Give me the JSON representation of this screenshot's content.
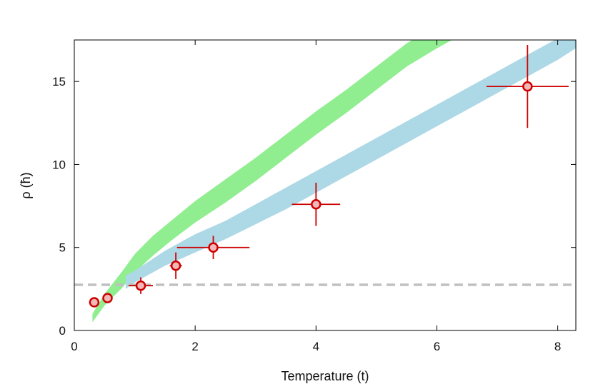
{
  "chart_data": {
    "type": "scatter",
    "title": "",
    "xlabel": "Temperature (t)",
    "ylabel": "ρ (ħ)",
    "xlim": [
      0,
      8.3
    ],
    "ylim": [
      0,
      17.5
    ],
    "xticks": [
      0,
      2,
      4,
      6,
      8
    ],
    "yticks": [
      0,
      5,
      10,
      15
    ],
    "grid": false,
    "reference_line": {
      "y": 2.75,
      "color": "#c0c0c0",
      "style": "dashed"
    },
    "bands": [
      {
        "color": "#90ee90",
        "x": [
          0.3,
          0.5,
          0.8,
          1.0,
          1.3,
          1.6,
          2.0,
          2.5,
          3.0,
          3.5,
          4.0,
          4.5,
          5.0,
          5.5,
          6.0,
          6.5
        ],
        "lower": [
          0.5,
          1.5,
          2.6,
          3.5,
          4.5,
          5.4,
          6.5,
          7.7,
          9.0,
          10.4,
          11.8,
          13.1,
          14.5,
          15.9,
          17.0,
          18.0
        ],
        "upper": [
          1.0,
          2.2,
          3.6,
          4.6,
          5.7,
          6.6,
          7.8,
          9.1,
          10.4,
          11.8,
          13.2,
          14.5,
          15.9,
          17.3,
          18.4,
          19.4
        ]
      },
      {
        "color": "#add8e6",
        "x": [
          0.85,
          1.0,
          1.5,
          2.0,
          2.5,
          3.0,
          3.5,
          4.0,
          4.5,
          5.0,
          5.5,
          6.0,
          6.5,
          7.0,
          7.5,
          8.0,
          8.3
        ],
        "lower": [
          2.5,
          2.9,
          3.9,
          4.7,
          5.5,
          6.4,
          7.3,
          8.3,
          9.3,
          10.3,
          11.3,
          12.3,
          13.3,
          14.3,
          15.3,
          16.3,
          17.0
        ],
        "upper": [
          3.3,
          3.6,
          4.8,
          5.8,
          6.6,
          7.6,
          8.6,
          9.6,
          10.6,
          11.6,
          12.6,
          13.6,
          14.6,
          15.6,
          16.6,
          17.6,
          18.2
        ]
      }
    ],
    "points": [
      {
        "x": 0.33,
        "y": 1.7,
        "xerr": 0.0,
        "yerr": 0.0
      },
      {
        "x": 0.55,
        "y": 1.95,
        "xerr": 0.0,
        "yerr": 0.0
      },
      {
        "x": 1.1,
        "y": 2.7,
        "xerr": 0.2,
        "yerr": 0.5
      },
      {
        "x": 1.68,
        "y": 3.9,
        "xerr": 0.1,
        "yerr": 0.8
      },
      {
        "x": 2.3,
        "y": 5.0,
        "xerr": 0.6,
        "yerr": 0.7
      },
      {
        "x": 4.0,
        "y": 7.6,
        "xerr": 0.4,
        "yerr": 1.3
      },
      {
        "x": 7.5,
        "y": 14.7,
        "xerr": 0.68,
        "yerr": 2.5
      }
    ],
    "point_fill": "#f2b8b8",
    "point_edge": "#cc0000"
  }
}
